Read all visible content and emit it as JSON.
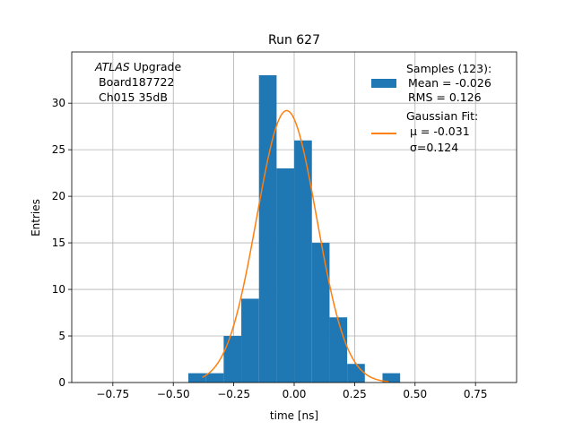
{
  "chart_data": {
    "type": "bar",
    "title": "Run 627",
    "xlabel": "time [ns]",
    "ylabel": "Entries",
    "xlim": [
      -0.92,
      0.92
    ],
    "ylim": [
      0,
      35.5
    ],
    "x_ticks": [
      -0.75,
      -0.5,
      -0.25,
      0.0,
      0.25,
      0.5,
      0.75
    ],
    "x_tick_labels": [
      "−0.75",
      "−0.50",
      "−0.25",
      "0.00",
      "0.25",
      "0.50",
      "0.75"
    ],
    "y_ticks": [
      0,
      5,
      10,
      15,
      20,
      25,
      30
    ],
    "y_tick_labels": [
      "0",
      "5",
      "10",
      "15",
      "20",
      "25",
      "30"
    ],
    "grid": true,
    "annotation": {
      "line1_italic": "ATLAS",
      "line1_rest": " Upgrade",
      "line2": "Board187722",
      "line3": "Ch015 35dB"
    },
    "histogram": {
      "name_lines": [
        "Samples (123):",
        "Mean = -0.026",
        "RMS = 0.126"
      ],
      "color": "#1f77b4",
      "bin_edges": [
        -0.4377,
        -0.3647,
        -0.2917,
        -0.2187,
        -0.1457,
        -0.0727,
        0.0003,
        0.0733,
        0.1463,
        0.2193,
        0.2923,
        0.3653,
        0.4383
      ],
      "counts": [
        1,
        1,
        5,
        9,
        33,
        23,
        26,
        15,
        7,
        2,
        0,
        1
      ]
    },
    "fit": {
      "name_lines": [
        "Gaussian Fit:",
        "μ = -0.031",
        "σ=0.124"
      ],
      "color": "#ff7f0e",
      "mu": -0.031,
      "sigma": 0.124,
      "amplitude": 29.2,
      "x_range": [
        -0.38,
        0.39
      ]
    },
    "legend_position": "upper right"
  }
}
